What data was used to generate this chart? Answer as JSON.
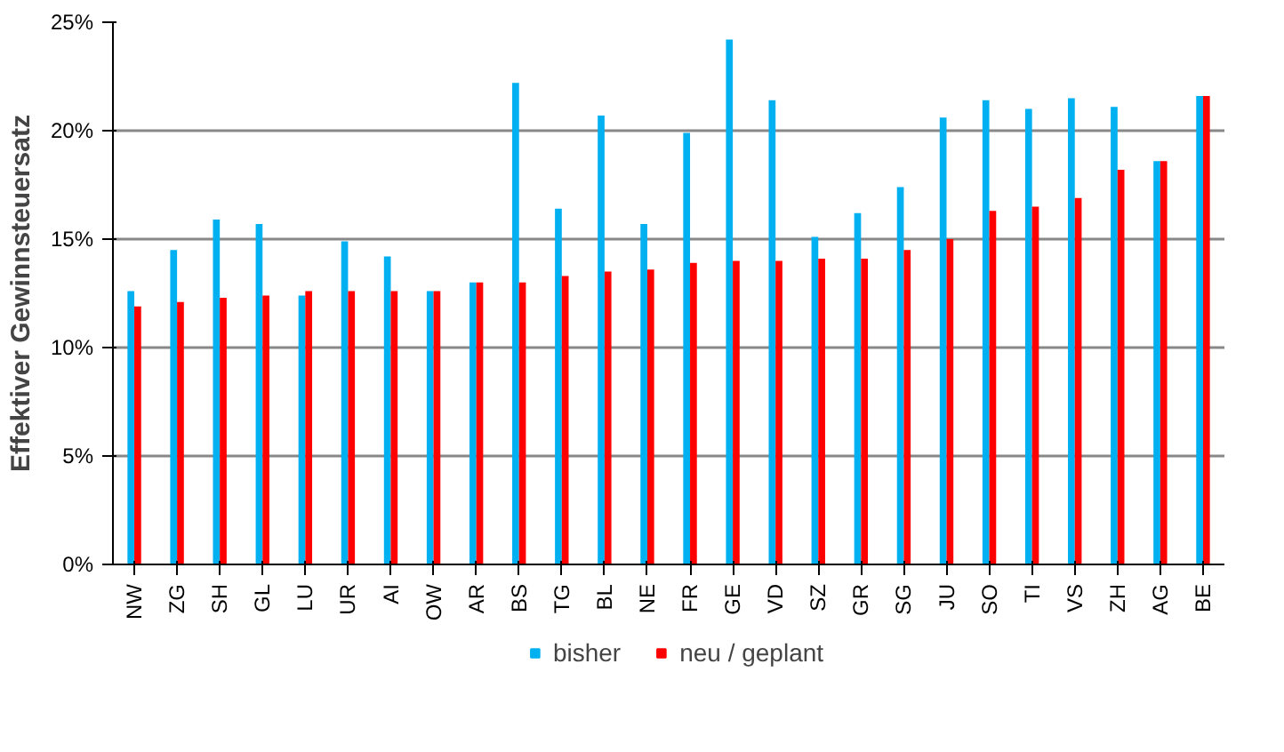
{
  "chart_data": {
    "type": "bar",
    "ylabel": "Effektiver Gewinnsteuersatz",
    "categories": [
      "NW",
      "ZG",
      "SH",
      "GL",
      "LU",
      "UR",
      "AI",
      "OW",
      "AR",
      "BS",
      "TG",
      "BL",
      "NE",
      "FR",
      "GE",
      "VD",
      "SZ",
      "GR",
      "SG",
      "JU",
      "SO",
      "TI",
      "VS",
      "ZH",
      "AG",
      "BE"
    ],
    "series": [
      {
        "name": "bisher",
        "color": "#00b0f0",
        "values": [
          12.6,
          14.5,
          15.9,
          15.7,
          12.4,
          14.9,
          14.2,
          12.6,
          13.0,
          22.2,
          16.4,
          20.7,
          15.7,
          19.9,
          24.2,
          21.4,
          15.1,
          16.2,
          17.4,
          20.6,
          21.4,
          21.0,
          21.5,
          21.1,
          18.6,
          21.6
        ]
      },
      {
        "name": "neu / geplant",
        "color": "#ff0000",
        "values": [
          11.9,
          12.1,
          12.3,
          12.4,
          12.6,
          12.6,
          12.6,
          12.6,
          13.0,
          13.0,
          13.3,
          13.5,
          13.6,
          13.9,
          14.0,
          14.0,
          14.1,
          14.1,
          14.5,
          15.0,
          16.3,
          16.5,
          16.9,
          18.2,
          18.6,
          21.6
        ]
      }
    ],
    "ylim": [
      0,
      25
    ],
    "yticks": [
      {
        "value": 0,
        "label": "0%"
      },
      {
        "value": 5,
        "label": "5%"
      },
      {
        "value": 10,
        "label": "10%"
      },
      {
        "value": 15,
        "label": "15%"
      },
      {
        "value": 20,
        "label": "20%"
      },
      {
        "value": 25,
        "label": "25%"
      }
    ],
    "grid": "y",
    "legend": "bottom"
  }
}
